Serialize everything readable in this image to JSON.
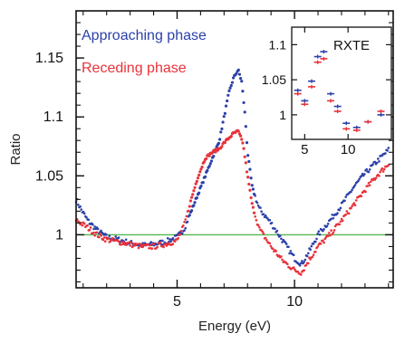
{
  "chart_data": [
    {
      "type": "scatter",
      "xlabel": "Energy (eV)",
      "ylabel": "Ratio",
      "xlim": [
        0.7,
        14.2
      ],
      "ylim": [
        0.955,
        1.19
      ],
      "xticks": [
        5,
        10
      ],
      "xtick_labels": [
        "5",
        "10"
      ],
      "yticks": [
        1,
        1.05,
        1.1,
        1.15
      ],
      "ytick_labels": [
        "1",
        "1.05",
        "1.1",
        "1.15"
      ],
      "reference_line": {
        "y": 1.0,
        "color": "#55b84e"
      },
      "legend": {
        "placement": "top-left"
      },
      "series": [
        {
          "name": "Approaching phase",
          "color": "#2c41a8",
          "points": [
            [
              0.7,
              1.03
            ],
            [
              0.9,
              1.022
            ],
            [
              1.2,
              1.012
            ],
            [
              1.6,
              1.004
            ],
            [
              2.0,
              0.998
            ],
            [
              2.5,
              0.996
            ],
            [
              3.0,
              0.993
            ],
            [
              3.5,
              0.991
            ],
            [
              4.0,
              0.992
            ],
            [
              4.5,
              0.994
            ],
            [
              5.0,
              0.998
            ],
            [
              5.3,
              1.005
            ],
            [
              5.6,
              1.02
            ],
            [
              5.9,
              1.035
            ],
            [
              6.2,
              1.05
            ],
            [
              6.5,
              1.065
            ],
            [
              6.8,
              1.08
            ],
            [
              7.0,
              1.1
            ],
            [
              7.2,
              1.12
            ],
            [
              7.4,
              1.133
            ],
            [
              7.6,
              1.14
            ],
            [
              7.75,
              1.13
            ],
            [
              7.9,
              1.1
            ],
            [
              8.0,
              1.07
            ],
            [
              8.2,
              1.04
            ],
            [
              8.5,
              1.022
            ],
            [
              9.0,
              1.01
            ],
            [
              9.5,
              0.995
            ],
            [
              10.0,
              0.98
            ],
            [
              10.3,
              0.975
            ],
            [
              10.6,
              0.985
            ],
            [
              11.0,
              1.0
            ],
            [
              11.5,
              1.012
            ],
            [
              12.0,
              1.025
            ],
            [
              12.5,
              1.04
            ],
            [
              13.0,
              1.052
            ],
            [
              13.5,
              1.062
            ],
            [
              14.0,
              1.072
            ]
          ]
        },
        {
          "name": "Receding phase",
          "color": "#e8323a",
          "points": [
            [
              0.7,
              1.013
            ],
            [
              0.9,
              1.01
            ],
            [
              1.2,
              1.006
            ],
            [
              1.6,
              1.0
            ],
            [
              2.0,
              0.996
            ],
            [
              2.5,
              0.994
            ],
            [
              3.0,
              0.992
            ],
            [
              3.5,
              0.99
            ],
            [
              4.0,
              0.99
            ],
            [
              4.5,
              0.992
            ],
            [
              5.0,
              0.995
            ],
            [
              5.3,
              1.008
            ],
            [
              5.6,
              1.03
            ],
            [
              5.9,
              1.05
            ],
            [
              6.2,
              1.065
            ],
            [
              6.5,
              1.07
            ],
            [
              6.8,
              1.073
            ],
            [
              7.0,
              1.078
            ],
            [
              7.2,
              1.082
            ],
            [
              7.4,
              1.086
            ],
            [
              7.6,
              1.088
            ],
            [
              7.8,
              1.078
            ],
            [
              8.0,
              1.05
            ],
            [
              8.2,
              1.025
            ],
            [
              8.5,
              1.005
            ],
            [
              9.0,
              0.99
            ],
            [
              9.5,
              0.978
            ],
            [
              10.0,
              0.97
            ],
            [
              10.3,
              0.968
            ],
            [
              10.6,
              0.978
            ],
            [
              11.0,
              0.99
            ],
            [
              11.5,
              1.0
            ],
            [
              12.0,
              1.012
            ],
            [
              12.5,
              1.025
            ],
            [
              13.0,
              1.038
            ],
            [
              13.5,
              1.05
            ],
            [
              14.0,
              1.06
            ]
          ]
        }
      ]
    },
    {
      "type": "scatter",
      "annotation": "RXTE",
      "xlim": [
        3.5,
        15
      ],
      "ylim": [
        0.965,
        1.125
      ],
      "xticks": [
        5,
        10
      ],
      "xtick_labels": [
        "5",
        "10"
      ],
      "yticks": [
        1,
        1.05,
        1.1
      ],
      "ytick_labels": [
        "1",
        "1.05",
        "1.1"
      ],
      "series": [
        {
          "name": "Approaching phase",
          "color": "#2c41a8",
          "points": [
            [
              4.2,
              1.035
            ],
            [
              5.0,
              1.02
            ],
            [
              5.8,
              1.048
            ],
            [
              6.5,
              1.083
            ],
            [
              7.2,
              1.09
            ],
            [
              8.0,
              1.03
            ],
            [
              8.8,
              1.012
            ],
            [
              9.8,
              0.988
            ],
            [
              11.0,
              0.982
            ],
            [
              12.3,
              0.99
            ],
            [
              13.8,
              1.0
            ]
          ]
        },
        {
          "name": "Receding phase",
          "color": "#e8323a",
          "points": [
            [
              4.2,
              1.03
            ],
            [
              5.0,
              1.015
            ],
            [
              5.8,
              1.04
            ],
            [
              6.5,
              1.075
            ],
            [
              7.2,
              1.08
            ],
            [
              8.0,
              1.02
            ],
            [
              8.8,
              1.005
            ],
            [
              9.8,
              0.98
            ],
            [
              11.0,
              0.978
            ],
            [
              12.3,
              0.99
            ],
            [
              13.8,
              1.005
            ]
          ]
        }
      ]
    }
  ]
}
